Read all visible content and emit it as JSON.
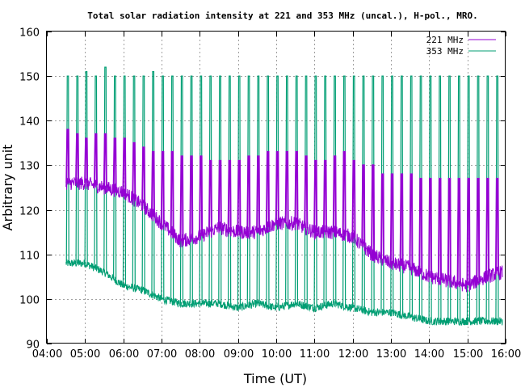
{
  "chart_data": {
    "type": "line",
    "title": "Total solar radiation intensity at 221 and 353 MHz (uncal.), H-pol., MRO.",
    "xlabel": "Time (UT)",
    "ylabel": "Arbitrary unit",
    "xlim": [
      "04:00",
      "16:00"
    ],
    "ylim": [
      90,
      160
    ],
    "xticks": [
      "04:00",
      "05:00",
      "06:00",
      "07:00",
      "08:00",
      "09:00",
      "10:00",
      "11:00",
      "12:00",
      "13:00",
      "14:00",
      "15:00",
      "16:00"
    ],
    "yticks": [
      90,
      100,
      110,
      120,
      130,
      140,
      150,
      160
    ],
    "grid": true,
    "legend_position": "top-right",
    "series": [
      {
        "name": "221 MHz",
        "color": "#9400d3",
        "x": [
          "04:30",
          "05:00",
          "05:30",
          "06:00",
          "06:30",
          "07:00",
          "07:30",
          "08:00",
          "08:30",
          "09:00",
          "09:30",
          "10:00",
          "10:30",
          "11:00",
          "11:30",
          "12:00",
          "12:30",
          "13:00",
          "13:30",
          "14:00",
          "14:30",
          "15:00",
          "15:30",
          "15:55"
        ],
        "y": [
          126,
          126,
          125,
          124,
          121,
          117,
          113,
          114,
          116,
          115,
          115,
          117,
          117,
          115,
          115,
          114,
          110,
          108,
          107,
          105,
          104,
          103,
          105,
          106
        ],
        "spikes": {
          "x": [
            "04:32",
            "04:47",
            "05:01",
            "05:16",
            "05:31",
            "05:46",
            "06:01",
            "06:16",
            "06:31",
            "06:46",
            "07:01",
            "07:16",
            "07:31",
            "07:46",
            "08:01",
            "08:16",
            "08:31",
            "08:46",
            "09:01",
            "09:16",
            "09:31",
            "09:46",
            "10:01",
            "10:16",
            "10:31",
            "10:46",
            "11:01",
            "11:16",
            "11:31",
            "11:46",
            "12:01",
            "12:16",
            "12:31",
            "12:46",
            "13:01",
            "13:16",
            "13:31",
            "13:46",
            "14:01",
            "14:16",
            "14:31",
            "14:46",
            "15:01",
            "15:16",
            "15:31",
            "15:46"
          ],
          "y": [
            138,
            137,
            136,
            137,
            137,
            136,
            136,
            135,
            134,
            133,
            133,
            133,
            132,
            132,
            132,
            131,
            131,
            131,
            131,
            132,
            132,
            133,
            133,
            133,
            133,
            132,
            131,
            131,
            132,
            133,
            131,
            130,
            130,
            128,
            128,
            128,
            128,
            127,
            127,
            127,
            127,
            127,
            127,
            127,
            127,
            127
          ]
        }
      },
      {
        "name": "353 MHz",
        "color": "#009e73",
        "x": [
          "04:30",
          "05:00",
          "05:30",
          "06:00",
          "06:30",
          "07:00",
          "07:30",
          "08:00",
          "08:30",
          "09:00",
          "09:30",
          "10:00",
          "10:30",
          "11:00",
          "11:30",
          "12:00",
          "12:30",
          "13:00",
          "13:30",
          "14:00",
          "14:30",
          "15:00",
          "15:30",
          "15:55"
        ],
        "y": [
          108,
          108,
          106,
          103,
          102,
          100,
          99,
          99,
          99,
          98,
          99,
          98,
          99,
          98,
          99,
          98,
          97,
          97,
          96,
          95,
          95,
          95,
          95,
          95
        ],
        "spikes": {
          "x": [
            "04:32",
            "04:47",
            "05:01",
            "05:16",
            "05:31",
            "05:46",
            "06:01",
            "06:16",
            "06:31",
            "06:46",
            "07:01",
            "07:16",
            "07:31",
            "07:46",
            "08:01",
            "08:16",
            "08:31",
            "08:46",
            "09:01",
            "09:16",
            "09:31",
            "09:46",
            "10:01",
            "10:16",
            "10:31",
            "10:46",
            "11:01",
            "11:16",
            "11:31",
            "11:46",
            "12:01",
            "12:16",
            "12:31",
            "12:46",
            "13:01",
            "13:16",
            "13:31",
            "13:46",
            "14:01",
            "14:16",
            "14:31",
            "14:46",
            "15:01",
            "15:16",
            "15:31",
            "15:46"
          ],
          "y": [
            150,
            150,
            151,
            150,
            152,
            150,
            150,
            150,
            150,
            151,
            150,
            150,
            150,
            150,
            150,
            150,
            150,
            150,
            150,
            150,
            150,
            150,
            150,
            150,
            150,
            150,
            150,
            150,
            150,
            150,
            150,
            150,
            150,
            150,
            150,
            150,
            150,
            150,
            150,
            150,
            150,
            150,
            150,
            150,
            150,
            150
          ]
        }
      }
    ]
  }
}
